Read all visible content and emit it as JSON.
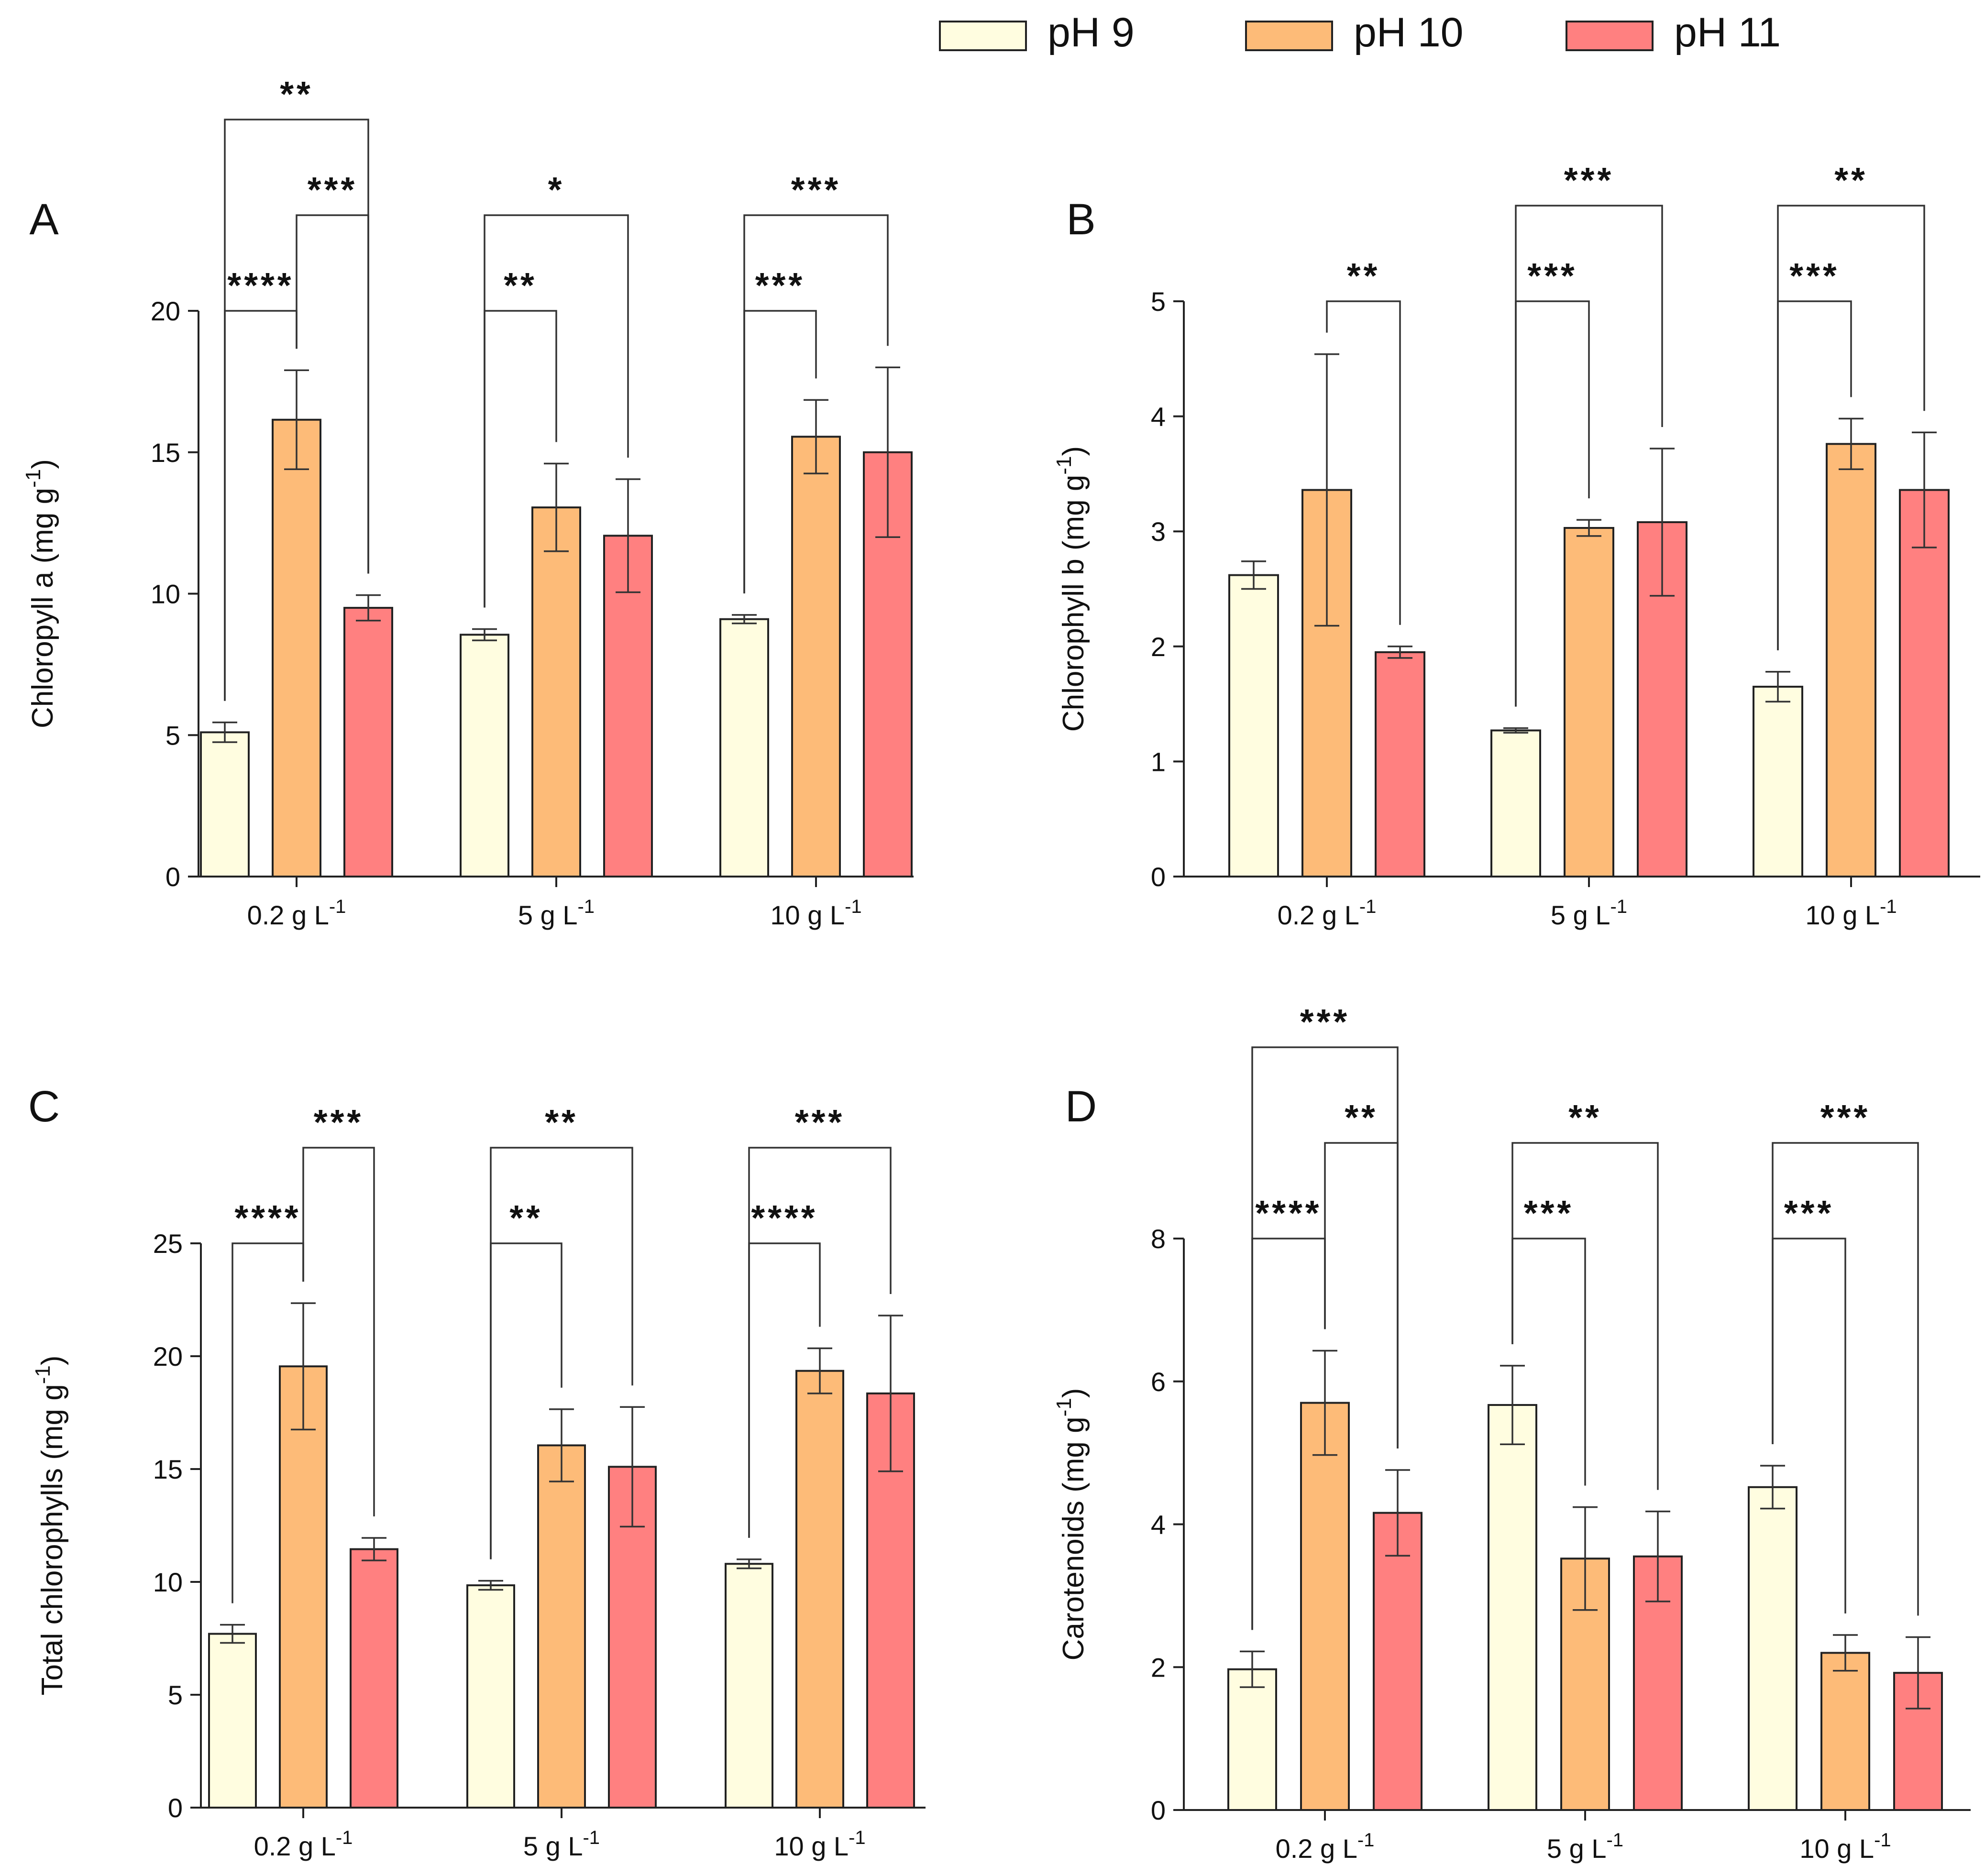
{
  "legend": [
    {
      "label": "pH 9",
      "color": "#FFFDE0"
    },
    {
      "label": "pH 10",
      "color": "#FDBB78"
    },
    {
      "label": "pH 11",
      "color": "#FF8080"
    }
  ],
  "chart_data": [
    {
      "type": "bar",
      "panel": "A",
      "categories": [
        [
          "0.2 g L",
          "-1"
        ],
        [
          "5 g L",
          "-1"
        ],
        [
          "10 g L",
          "-1"
        ]
      ],
      "ylabel": [
        "Chloropyll a (mg g",
        "-1",
        ")"
      ],
      "ylim": [
        0,
        20
      ],
      "yticks": [
        0,
        5,
        10,
        15,
        20
      ],
      "series": [
        {
          "name": "pH 9",
          "values": [
            5.1,
            8.55,
            9.1
          ],
          "errors": [
            0.35,
            0.2,
            0.15
          ]
        },
        {
          "name": "pH 10",
          "values": [
            16.15,
            13.05,
            15.55
          ],
          "errors": [
            1.75,
            1.55,
            1.3
          ]
        },
        {
          "name": "pH 11",
          "values": [
            9.5,
            12.05,
            15.0
          ],
          "errors": [
            0.45,
            2.0,
            3.0
          ]
        }
      ],
      "significance": [
        {
          "group": 0,
          "from": 0,
          "to": 1,
          "label": "****",
          "level": 0
        },
        {
          "group": 0,
          "from": 1,
          "to": 2,
          "label": "***",
          "level": 1
        },
        {
          "group": 0,
          "from": 0,
          "to": 2,
          "label": "**",
          "level": 2
        },
        {
          "group": 1,
          "from": 0,
          "to": 1,
          "label": "**",
          "level": 0
        },
        {
          "group": 1,
          "from": 0,
          "to": 2,
          "label": "*",
          "level": 1
        },
        {
          "group": 2,
          "from": 0,
          "to": 1,
          "label": "***",
          "level": 0
        },
        {
          "group": 2,
          "from": 0,
          "to": 2,
          "label": "***",
          "level": 1
        }
      ]
    },
    {
      "type": "bar",
      "panel": "B",
      "categories": [
        [
          "0.2 g L",
          "-1"
        ],
        [
          "5 g L",
          "-1"
        ],
        [
          "10 g L",
          "-1"
        ]
      ],
      "ylabel": [
        "Chlorophyll b (mg g",
        "-1",
        ")"
      ],
      "ylim": [
        0,
        5
      ],
      "yticks": [
        0,
        1,
        2,
        3,
        4,
        5
      ],
      "series": [
        {
          "name": "pH 9",
          "values": [
            2.62,
            1.27,
            1.65
          ],
          "errors": [
            0.12,
            0.02,
            0.13
          ]
        },
        {
          "name": "pH 10",
          "values": [
            3.36,
            3.03,
            3.76
          ],
          "errors": [
            1.18,
            0.07,
            0.22
          ]
        },
        {
          "name": "pH 11",
          "values": [
            1.95,
            3.08,
            3.36
          ],
          "errors": [
            0.05,
            0.64,
            0.5
          ]
        }
      ],
      "significance": [
        {
          "group": 0,
          "from": 1,
          "to": 2,
          "label": "**",
          "level": 0
        },
        {
          "group": 1,
          "from": 0,
          "to": 1,
          "label": "***",
          "level": 0
        },
        {
          "group": 1,
          "from": 0,
          "to": 2,
          "label": "***",
          "level": 1
        },
        {
          "group": 2,
          "from": 0,
          "to": 1,
          "label": "***",
          "level": 0
        },
        {
          "group": 2,
          "from": 0,
          "to": 2,
          "label": "**",
          "level": 1
        }
      ]
    },
    {
      "type": "bar",
      "panel": "C",
      "categories": [
        [
          "0.2 g L",
          "-1"
        ],
        [
          "5 g L",
          "-1"
        ],
        [
          "10 g L",
          "-1"
        ]
      ],
      "ylabel": [
        "Total chlorophylls (mg g",
        "-1",
        ")"
      ],
      "ylim": [
        0,
        25
      ],
      "yticks": [
        0,
        5,
        10,
        15,
        20,
        25
      ],
      "series": [
        {
          "name": "pH 9",
          "values": [
            7.7,
            9.85,
            10.8
          ],
          "errors": [
            0.4,
            0.2,
            0.2
          ]
        },
        {
          "name": "pH 10",
          "values": [
            19.55,
            16.05,
            19.35
          ],
          "errors": [
            2.8,
            1.6,
            1.0
          ]
        },
        {
          "name": "pH 11",
          "values": [
            11.45,
            15.1,
            18.35
          ],
          "errors": [
            0.5,
            2.65,
            3.45
          ]
        }
      ],
      "significance": [
        {
          "group": 0,
          "from": 0,
          "to": 1,
          "label": "****",
          "level": 0
        },
        {
          "group": 0,
          "from": 1,
          "to": 2,
          "label": "***",
          "level": 1
        },
        {
          "group": 1,
          "from": 0,
          "to": 1,
          "label": "**",
          "level": 0
        },
        {
          "group": 1,
          "from": 0,
          "to": 2,
          "label": "**",
          "level": 1
        },
        {
          "group": 2,
          "from": 0,
          "to": 1,
          "label": "****",
          "level": 0
        },
        {
          "group": 2,
          "from": 0,
          "to": 2,
          "label": "***",
          "level": 1
        }
      ]
    },
    {
      "type": "bar",
      "panel": "D",
      "categories": [
        [
          "0.2 g L",
          "-1"
        ],
        [
          "5 g L",
          "-1"
        ],
        [
          "10 g L",
          "-1"
        ]
      ],
      "ylabel": [
        "Carotenoids (mg g",
        "-1",
        ")"
      ],
      "ylim": [
        0,
        8
      ],
      "yticks": [
        0,
        2,
        4,
        6,
        8
      ],
      "series": [
        {
          "name": "pH 9",
          "values": [
            1.97,
            5.67,
            4.52
          ],
          "errors": [
            0.25,
            0.55,
            0.3
          ]
        },
        {
          "name": "pH 10",
          "values": [
            5.7,
            3.52,
            2.2
          ],
          "errors": [
            0.73,
            0.72,
            0.25
          ]
        },
        {
          "name": "pH 11",
          "values": [
            4.16,
            3.55,
            1.92
          ],
          "errors": [
            0.6,
            0.63,
            0.5
          ]
        }
      ],
      "significance": [
        {
          "group": 0,
          "from": 0,
          "to": 1,
          "label": "****",
          "level": 0
        },
        {
          "group": 0,
          "from": 1,
          "to": 2,
          "label": "**",
          "level": 1
        },
        {
          "group": 0,
          "from": 0,
          "to": 2,
          "label": "***",
          "level": 2
        },
        {
          "group": 1,
          "from": 0,
          "to": 1,
          "label": "***",
          "level": 0
        },
        {
          "group": 1,
          "from": 0,
          "to": 2,
          "label": "**",
          "level": 1
        },
        {
          "group": 2,
          "from": 0,
          "to": 1,
          "label": "***",
          "level": 0
        },
        {
          "group": 2,
          "from": 0,
          "to": 2,
          "label": "***",
          "level": 1
        }
      ]
    }
  ]
}
